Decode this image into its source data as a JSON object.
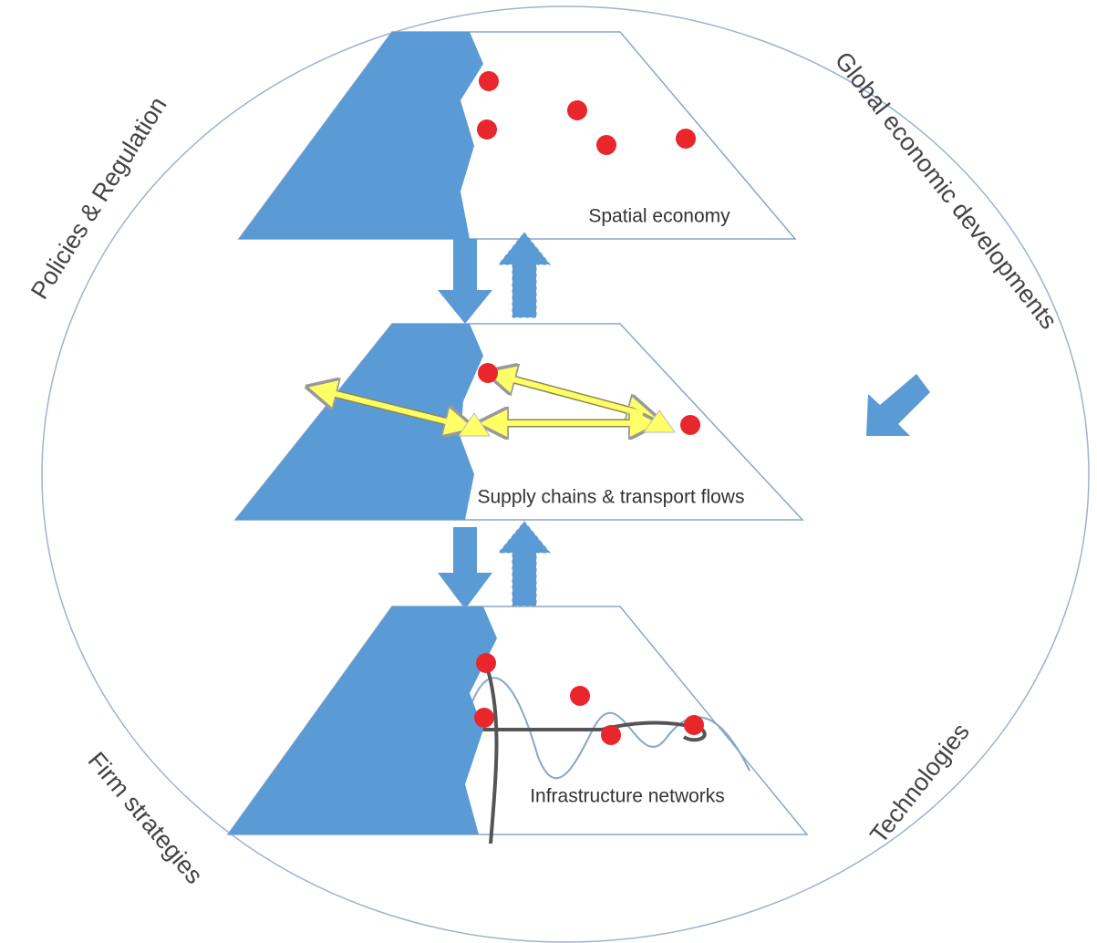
{
  "layers": [
    "Spatial economy",
    "Supply chains & transport flows",
    "Infrastructure networks"
  ],
  "context_labels": [
    "Policies & Regulation",
    "Global economic developments",
    "Firm strategies",
    "Technologies"
  ]
}
